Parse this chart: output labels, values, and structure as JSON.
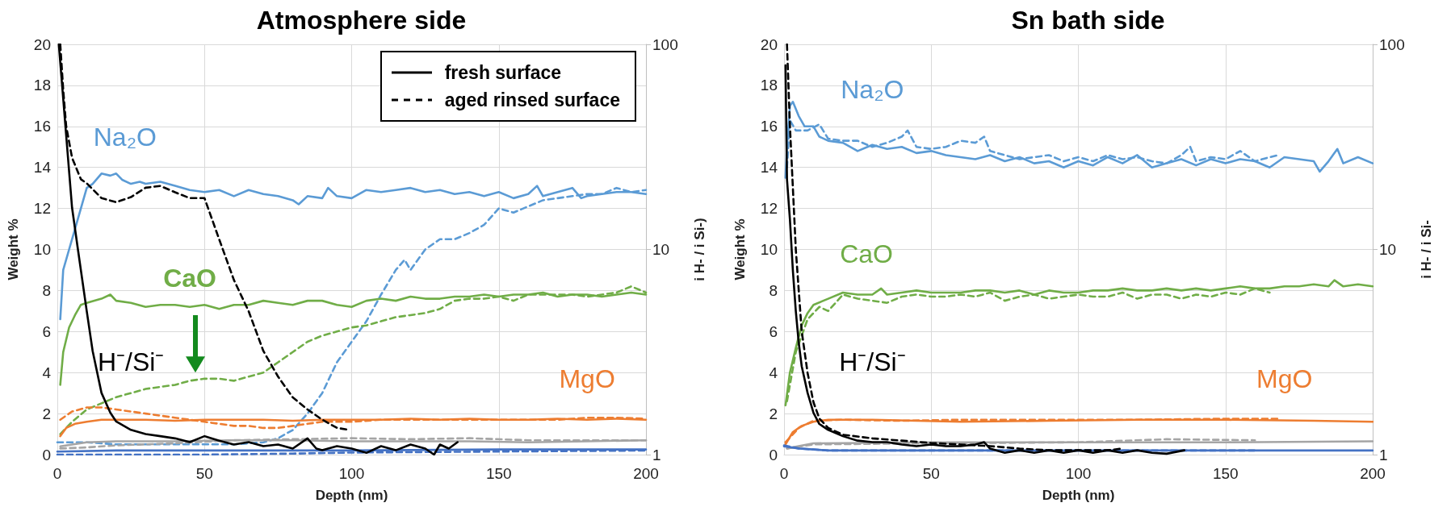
{
  "chart_data": [
    {
      "type": "line",
      "title": "Atmosphere side",
      "xlabel": "Depth (nm)",
      "ylabel": "Weight %",
      "y2label": "i H- / i Si-)",
      "xlim": [
        0,
        200
      ],
      "xticks": [
        0,
        50,
        100,
        150,
        200
      ],
      "ylim": [
        0,
        20
      ],
      "yticks": [
        0,
        2,
        4,
        6,
        8,
        10,
        12,
        14,
        16,
        18,
        20
      ],
      "y2lim": [
        1,
        100
      ],
      "y2ticks": [
        1,
        10,
        100
      ],
      "log": "y2",
      "grid": true,
      "marker": "none",
      "annotations": [
        "fresh surface",
        "aged rinsed surface"
      ],
      "series": [
        {
          "name": "Na₂O",
          "color": "#5b9bd5",
          "line_style": "solid",
          "x": [
            1,
            2,
            4,
            6,
            8,
            10,
            12,
            15,
            18,
            20,
            22,
            25,
            28,
            30,
            35,
            40,
            45,
            50,
            55,
            60,
            65,
            70,
            75,
            80,
            82,
            85,
            90,
            92,
            95,
            100,
            105,
            110,
            115,
            120,
            125,
            130,
            135,
            140,
            145,
            150,
            155,
            160,
            163,
            165,
            170,
            175,
            178,
            180,
            185,
            190,
            195,
            200
          ],
          "values": [
            6.6,
            9,
            10,
            11,
            12,
            13,
            13.2,
            13.7,
            13.6,
            13.7,
            13.4,
            13.2,
            13.3,
            13.2,
            13.3,
            13.1,
            12.9,
            12.8,
            12.9,
            12.6,
            12.9,
            12.7,
            12.6,
            12.4,
            12.2,
            12.6,
            12.5,
            13,
            12.6,
            12.5,
            12.9,
            12.8,
            12.9,
            13,
            12.8,
            12.9,
            12.7,
            12.8,
            12.6,
            12.8,
            12.5,
            12.7,
            13.1,
            12.6,
            12.8,
            13,
            12.5,
            12.6,
            12.7,
            12.8,
            12.8,
            12.7
          ]
        },
        {
          "color": "#5b9bd5",
          "line_style": "dashed",
          "x": [
            0,
            10,
            20,
            30,
            40,
            50,
            60,
            70,
            75,
            80,
            85,
            90,
            95,
            100,
            105,
            110,
            115,
            118,
            120,
            125,
            130,
            135,
            140,
            145,
            150,
            155,
            160,
            165,
            170,
            175,
            180,
            185,
            190,
            195,
            200
          ],
          "values": [
            0.6,
            0.6,
            0.5,
            0.5,
            0.5,
            0.5,
            0.5,
            0.6,
            0.8,
            1.2,
            2,
            3,
            4.5,
            5.5,
            6.5,
            7.8,
            9,
            9.5,
            9,
            10,
            10.5,
            10.5,
            10.8,
            11.2,
            12,
            11.8,
            12.1,
            12.4,
            12.5,
            12.6,
            12.7,
            12.7,
            13,
            12.8,
            12.9
          ]
        },
        {
          "name": "CaO",
          "color": "#70ad47",
          "line_style": "solid",
          "x": [
            1,
            2,
            4,
            6,
            8,
            10,
            15,
            18,
            20,
            25,
            30,
            35,
            40,
            45,
            50,
            55,
            60,
            65,
            70,
            75,
            80,
            85,
            90,
            95,
            100,
            105,
            110,
            115,
            120,
            125,
            130,
            135,
            140,
            145,
            150,
            155,
            160,
            165,
            170,
            175,
            180,
            185,
            190,
            195,
            200
          ],
          "values": [
            3.4,
            5,
            6.2,
            6.8,
            7.3,
            7.4,
            7.6,
            7.8,
            7.5,
            7.4,
            7.2,
            7.3,
            7.3,
            7.2,
            7.3,
            7.1,
            7.3,
            7.3,
            7.5,
            7.4,
            7.3,
            7.5,
            7.5,
            7.3,
            7.2,
            7.5,
            7.6,
            7.5,
            7.7,
            7.6,
            7.6,
            7.7,
            7.7,
            7.8,
            7.7,
            7.8,
            7.8,
            7.9,
            7.7,
            7.8,
            7.8,
            7.7,
            7.8,
            7.9,
            7.8
          ]
        },
        {
          "color": "#70ad47",
          "line_style": "dashed",
          "x": [
            1,
            5,
            10,
            15,
            20,
            25,
            30,
            35,
            40,
            45,
            50,
            55,
            60,
            65,
            70,
            75,
            80,
            85,
            90,
            95,
            100,
            105,
            110,
            115,
            120,
            125,
            130,
            135,
            140,
            145,
            150,
            155,
            160,
            165,
            170,
            175,
            180,
            185,
            190,
            195,
            200
          ],
          "values": [
            1,
            1.6,
            2.2,
            2.5,
            2.8,
            3,
            3.2,
            3.3,
            3.4,
            3.6,
            3.7,
            3.7,
            3.6,
            3.8,
            4,
            4.5,
            5,
            5.5,
            5.8,
            6,
            6.2,
            6.3,
            6.5,
            6.7,
            6.8,
            6.9,
            7.1,
            7.5,
            7.6,
            7.6,
            7.7,
            7.5,
            7.8,
            7.8,
            7.8,
            7.8,
            7.7,
            7.8,
            7.9,
            8.2,
            7.9
          ]
        },
        {
          "name": "MgO",
          "color": "#ed7d31",
          "line_style": "solid",
          "x": [
            1,
            3,
            6,
            10,
            15,
            20,
            30,
            40,
            50,
            60,
            70,
            80,
            90,
            100,
            110,
            120,
            130,
            140,
            150,
            160,
            170,
            180,
            190,
            200
          ],
          "values": [
            0.9,
            1.3,
            1.5,
            1.6,
            1.7,
            1.7,
            1.7,
            1.65,
            1.7,
            1.7,
            1.7,
            1.65,
            1.7,
            1.7,
            1.7,
            1.75,
            1.7,
            1.75,
            1.7,
            1.7,
            1.75,
            1.7,
            1.75,
            1.7
          ]
        },
        {
          "color": "#ed7d31",
          "line_style": "dashed",
          "x": [
            1,
            5,
            10,
            15,
            20,
            25,
            30,
            35,
            40,
            45,
            50,
            55,
            60,
            65,
            70,
            75,
            80,
            85,
            90,
            95,
            100,
            110,
            120,
            130,
            140,
            150,
            160,
            170,
            180,
            190,
            200
          ],
          "values": [
            1.7,
            2.1,
            2.3,
            2.3,
            2.2,
            2.1,
            2,
            1.9,
            1.8,
            1.7,
            1.6,
            1.5,
            1.4,
            1.4,
            1.3,
            1.3,
            1.4,
            1.5,
            1.6,
            1.6,
            1.6,
            1.7,
            1.7,
            1.7,
            1.7,
            1.7,
            1.7,
            1.7,
            1.8,
            1.8,
            1.75
          ]
        },
        {
          "color": "#a5a5a5",
          "line_style": "solid",
          "x": [
            1,
            10,
            20,
            40,
            60,
            80,
            100,
            120,
            140,
            160,
            180,
            200
          ],
          "values": [
            0.4,
            0.6,
            0.65,
            0.65,
            0.7,
            0.7,
            0.65,
            0.65,
            0.65,
            0.6,
            0.65,
            0.7
          ]
        },
        {
          "color": "#a5a5a5",
          "line_style": "dashed",
          "x": [
            1,
            10,
            20,
            40,
            60,
            80,
            100,
            120,
            140,
            160,
            180,
            200
          ],
          "values": [
            0.3,
            0.35,
            0.45,
            0.55,
            0.7,
            0.75,
            0.8,
            0.75,
            0.8,
            0.7,
            0.7,
            0.7
          ]
        },
        {
          "color": "#4472c4",
          "line_style": "solid",
          "x": [
            0,
            20,
            50,
            100,
            150,
            200
          ],
          "values": [
            0.15,
            0.2,
            0.2,
            0.2,
            0.25,
            0.25
          ]
        },
        {
          "color": "#4472c4",
          "line_style": "dashed",
          "x": [
            0,
            50,
            80,
            100,
            150,
            200
          ],
          "values": [
            0,
            0,
            0.05,
            0.1,
            0.15,
            0.2
          ]
        },
        {
          "name": "H⁻/Si⁻",
          "color": "#000000",
          "line_style": "solid",
          "axis": "y2",
          "x": [
            0.5,
            5,
            7,
            10,
            12,
            15,
            18,
            20,
            25,
            30,
            35,
            40,
            45,
            50,
            55,
            60,
            65,
            70,
            75,
            80,
            85,
            88,
            90,
            95,
            100,
            105,
            110,
            115,
            120,
            125,
            128,
            130,
            133,
            136
          ],
          "values": [
            100,
            16,
            10,
            5,
            3.2,
            2,
            1.6,
            1.45,
            1.32,
            1.26,
            1.23,
            1.2,
            1.15,
            1.23,
            1.17,
            1.12,
            1.15,
            1.1,
            1.12,
            1.07,
            1.2,
            1.07,
            1.05,
            1.1,
            1.07,
            1.02,
            1.1,
            1.05,
            1.12,
            1.07,
            1,
            1.12,
            1.07,
            1.15
          ]
        },
        {
          "color": "#000000",
          "line_style": "dashed",
          "axis": "y2",
          "x": [
            1,
            2,
            3,
            5,
            8,
            10,
            15,
            20,
            25,
            30,
            35,
            40,
            45,
            50,
            55,
            60,
            65,
            70,
            75,
            80,
            85,
            90,
            95,
            99
          ],
          "values": [
            100,
            60,
            40,
            28,
            22,
            21,
            17.8,
            17,
            18,
            20,
            20.4,
            19,
            17.8,
            17.8,
            11.2,
            7.1,
            5,
            3.2,
            2.4,
            1.9,
            1.66,
            1.48,
            1.35,
            1.32
          ]
        }
      ]
    },
    {
      "type": "line",
      "title": "Sn bath side",
      "xlabel": "Depth (nm)",
      "ylabel": "Weight %",
      "y2label": "i H- / i Si-",
      "xlim": [
        0,
        200
      ],
      "xticks": [
        0,
        50,
        100,
        150,
        200
      ],
      "ylim": [
        0,
        20
      ],
      "yticks": [
        0,
        2,
        4,
        6,
        8,
        10,
        12,
        14,
        16,
        18,
        20
      ],
      "y2lim": [
        1,
        100
      ],
      "y2ticks": [
        1,
        10,
        100
      ],
      "log": "y2",
      "grid": true,
      "marker": "none",
      "series": [
        {
          "name": "Na₂O",
          "color": "#5b9bd5",
          "line_style": "solid",
          "x": [
            0.5,
            1,
            2,
            3,
            5,
            7,
            10,
            12,
            15,
            20,
            25,
            30,
            35,
            40,
            45,
            50,
            55,
            60,
            65,
            70,
            75,
            80,
            85,
            90,
            95,
            100,
            105,
            110,
            115,
            120,
            125,
            130,
            135,
            140,
            145,
            150,
            155,
            160,
            165,
            170,
            175,
            180,
            182,
            185,
            188,
            190,
            195,
            200
          ],
          "values": [
            13.5,
            15,
            17,
            17.2,
            16.5,
            16,
            16,
            15.5,
            15.3,
            15.2,
            14.8,
            15.1,
            14.9,
            15,
            14.7,
            14.8,
            14.6,
            14.5,
            14.4,
            14.6,
            14.3,
            14.5,
            14.2,
            14.3,
            14,
            14.3,
            14.1,
            14.5,
            14.2,
            14.6,
            14,
            14.2,
            14.4,
            14.1,
            14.4,
            14.2,
            14.4,
            14.3,
            14,
            14.5,
            14.4,
            14.3,
            13.8,
            14.3,
            14.9,
            14.2,
            14.5,
            14.2
          ]
        },
        {
          "color": "#5b9bd5",
          "line_style": "dashed",
          "x": [
            1,
            2,
            4,
            8,
            12,
            15,
            20,
            25,
            30,
            35,
            40,
            42,
            45,
            50,
            55,
            60,
            65,
            68,
            70,
            75,
            80,
            85,
            90,
            95,
            100,
            105,
            110,
            115,
            120,
            125,
            130,
            135,
            138,
            140,
            145,
            150,
            155,
            160,
            165,
            168
          ],
          "values": [
            14,
            16.3,
            15.8,
            15.8,
            16.1,
            15.4,
            15.3,
            15.3,
            15,
            15.2,
            15.5,
            15.8,
            15,
            14.9,
            15,
            15.3,
            15.2,
            15.5,
            14.8,
            14.6,
            14.4,
            14.5,
            14.6,
            14.3,
            14.5,
            14.3,
            14.6,
            14.4,
            14.5,
            14.3,
            14.2,
            14.6,
            15,
            14.3,
            14.5,
            14.4,
            14.8,
            14.3,
            14.5,
            14.6
          ]
        },
        {
          "name": "CaO",
          "color": "#70ad47",
          "line_style": "solid",
          "x": [
            0.5,
            2,
            4,
            6,
            8,
            10,
            15,
            20,
            25,
            30,
            33,
            35,
            40,
            45,
            50,
            55,
            60,
            65,
            70,
            75,
            80,
            85,
            90,
            95,
            100,
            105,
            110,
            115,
            120,
            125,
            130,
            135,
            140,
            145,
            150,
            155,
            160,
            165,
            170,
            175,
            180,
            185,
            187,
            190,
            195,
            200
          ],
          "values": [
            2.4,
            4,
            5.2,
            6.3,
            6.9,
            7.3,
            7.6,
            7.9,
            7.8,
            7.8,
            8.1,
            7.8,
            7.9,
            8,
            7.9,
            7.9,
            7.9,
            8,
            8,
            7.9,
            8,
            7.8,
            8,
            7.9,
            7.9,
            8,
            8,
            8.1,
            8,
            8,
            8.1,
            8,
            8.1,
            8,
            8.1,
            8.2,
            8.1,
            8.1,
            8.2,
            8.2,
            8.3,
            8.2,
            8.5,
            8.2,
            8.3,
            8.2
          ]
        },
        {
          "color": "#70ad47",
          "line_style": "dashed",
          "x": [
            1,
            4,
            8,
            12,
            15,
            20,
            25,
            30,
            35,
            40,
            45,
            50,
            55,
            60,
            65,
            70,
            75,
            80,
            85,
            90,
            95,
            100,
            105,
            110,
            115,
            120,
            125,
            130,
            135,
            140,
            145,
            150,
            155,
            160,
            165
          ],
          "values": [
            2.6,
            5,
            6.6,
            7.2,
            7,
            7.8,
            7.6,
            7.5,
            7.4,
            7.7,
            7.8,
            7.7,
            7.7,
            7.8,
            7.7,
            7.9,
            7.5,
            7.7,
            7.8,
            7.6,
            7.7,
            7.8,
            7.7,
            7.7,
            7.9,
            7.6,
            7.8,
            7.8,
            7.6,
            7.8,
            7.7,
            7.9,
            7.8,
            8.1,
            7.9
          ]
        },
        {
          "name": "MgO",
          "color": "#ed7d31",
          "line_style": "solid",
          "x": [
            0.5,
            3,
            6,
            10,
            15,
            30,
            60,
            90,
            120,
            150,
            180,
            200
          ],
          "values": [
            0.5,
            1.1,
            1.4,
            1.6,
            1.7,
            1.7,
            1.6,
            1.65,
            1.7,
            1.7,
            1.65,
            1.6
          ]
        },
        {
          "color": "#ed7d31",
          "line_style": "dashed",
          "x": [
            0.5,
            5,
            10,
            20,
            40,
            60,
            90,
            120,
            150,
            168
          ],
          "values": [
            0.6,
            1.3,
            1.65,
            1.7,
            1.65,
            1.7,
            1.7,
            1.7,
            1.75,
            1.75
          ]
        },
        {
          "color": "#a5a5a5",
          "line_style": "solid",
          "x": [
            1,
            10,
            50,
            100,
            150,
            200
          ],
          "values": [
            0.3,
            0.55,
            0.6,
            0.6,
            0.6,
            0.65
          ]
        },
        {
          "color": "#a5a5a5",
          "line_style": "dashed",
          "x": [
            1,
            10,
            50,
            100,
            130,
            160
          ],
          "values": [
            0.3,
            0.5,
            0.55,
            0.6,
            0.75,
            0.7
          ]
        },
        {
          "color": "#4472c4",
          "line_style": "solid",
          "x": [
            0,
            5,
            15,
            50,
            100,
            200
          ],
          "values": [
            0.4,
            0.3,
            0.2,
            0.2,
            0.2,
            0.2
          ]
        },
        {
          "color": "#4472c4",
          "line_style": "dashed",
          "x": [
            0,
            5,
            15,
            50,
            100,
            160
          ],
          "values": [
            0.45,
            0.3,
            0.2,
            0.2,
            0.2,
            0.2
          ]
        },
        {
          "name": "H⁻/Si⁻",
          "color": "#000000",
          "line_style": "solid",
          "axis": "y2",
          "x": [
            0.5,
            1,
            2,
            3,
            4,
            5,
            6,
            8,
            10,
            12,
            15,
            20,
            25,
            30,
            35,
            40,
            45,
            50,
            55,
            60,
            65,
            68,
            70,
            75,
            80,
            85,
            90,
            95,
            100,
            105,
            110,
            115,
            120,
            125,
            130,
            136
          ],
          "values": [
            79,
            22,
            14,
            7.9,
            5,
            3.5,
            2.7,
            2,
            1.6,
            1.41,
            1.32,
            1.23,
            1.17,
            1.15,
            1.15,
            1.12,
            1.1,
            1.12,
            1.1,
            1.1,
            1.12,
            1.15,
            1.07,
            1.02,
            1.05,
            1.02,
            1.05,
            1.02,
            1.05,
            1.02,
            1.05,
            1.02,
            1.05,
            1.02,
            1.01,
            1.05
          ]
        },
        {
          "color": "#000000",
          "line_style": "dashed",
          "axis": "y2",
          "x": [
            1,
            2,
            3,
            4,
            5,
            6,
            8,
            10,
            12,
            15,
            20,
            30,
            40,
            50,
            60,
            70,
            80,
            90,
            100,
            110,
            115
          ],
          "values": [
            100,
            40,
            20,
            10,
            6.3,
            4,
            2.5,
            1.8,
            1.5,
            1.35,
            1.25,
            1.2,
            1.17,
            1.14,
            1.12,
            1.1,
            1.07,
            1.05,
            1.05,
            1.05,
            1.07
          ]
        }
      ]
    }
  ]
}
